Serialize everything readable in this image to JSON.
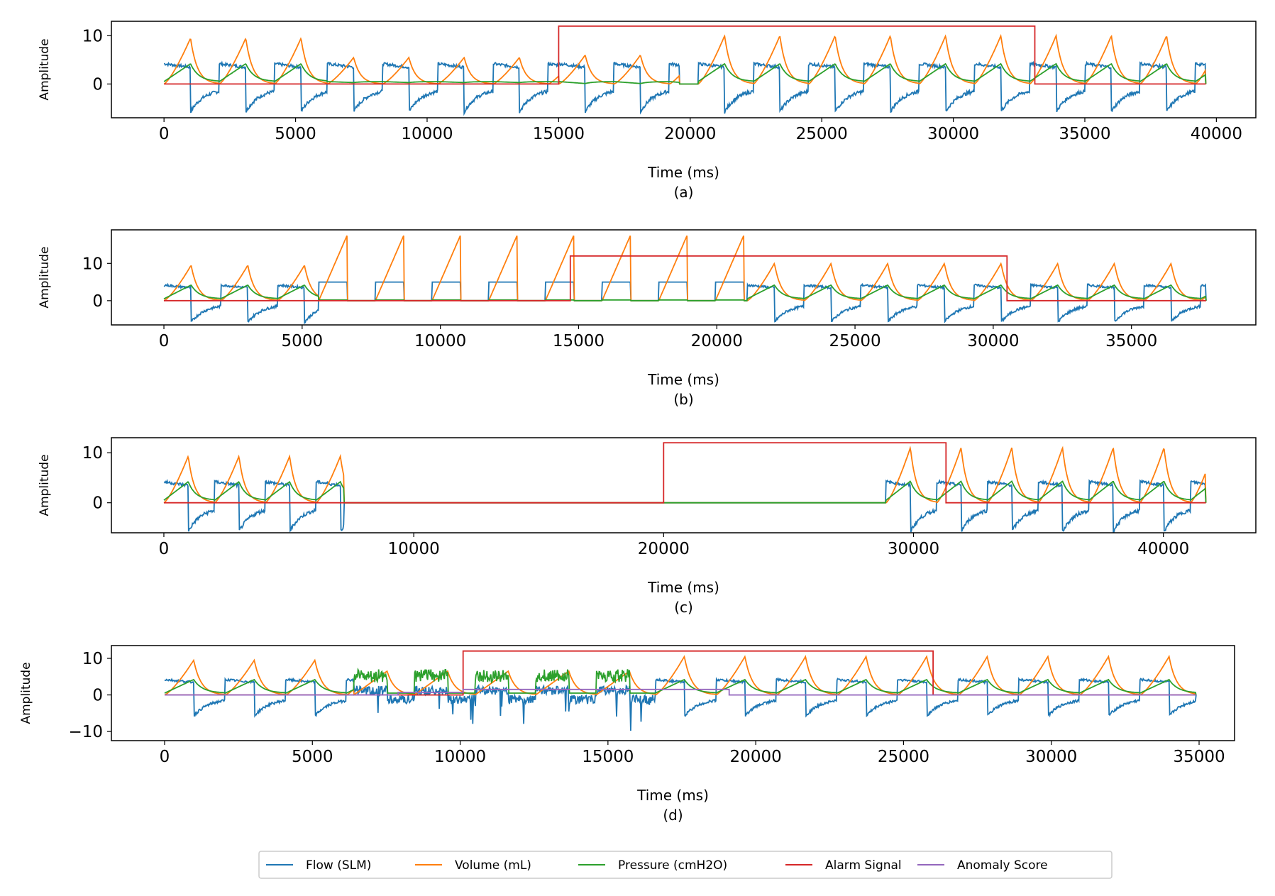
{
  "colors": {
    "flow": "#1f77b4",
    "volume": "#ff7f0e",
    "pressure": "#2ca02c",
    "alarm": "#d62728",
    "anomaly": "#9467bd"
  },
  "legend": {
    "placement": "bottom-center",
    "entries": [
      {
        "label": "Flow (SLM)",
        "color": "#1f77b4"
      },
      {
        "label": "Volume (mL)",
        "color": "#ff7f0e"
      },
      {
        "label": "Pressure (cmH2O)",
        "color": "#2ca02c"
      },
      {
        "label": "Alarm Signal",
        "color": "#d62728"
      },
      {
        "label": "Anomaly Score",
        "color": "#9467bd"
      }
    ]
  },
  "chart_data": [
    {
      "type": "line",
      "caption": "(a)",
      "xlabel": "Time (ms)",
      "ylabel": "Amplitude",
      "xlim": [
        -2000,
        41500
      ],
      "ylim": [
        -7,
        13
      ],
      "xticks": [
        0,
        5000,
        10000,
        15000,
        20000,
        25000,
        30000,
        35000,
        40000
      ],
      "yticks": [
        0,
        10
      ],
      "grid": false,
      "duration": 39600,
      "breath_period": 2100,
      "apnea": [
        [
          19600,
          20300
        ]
      ],
      "mode_segments": [
        {
          "start": 0,
          "end": 6200,
          "vol_peak": 9.5,
          "press_peak": 4.2
        },
        {
          "start": 6200,
          "end": 15000,
          "vol_peak": 5.5,
          "press_peak": 0.3
        },
        {
          "start": 15000,
          "end": 19600,
          "vol_peak": 6.0,
          "press_peak": 0.1
        },
        {
          "start": 20300,
          "end": 39600,
          "vol_peak": 10.0,
          "press_peak": 4.2
        }
      ],
      "series": [
        {
          "name": "Alarm Signal",
          "x": [
            0,
            15000,
            15000,
            33100,
            33100,
            39600
          ],
          "y": [
            0,
            0,
            12,
            12,
            0,
            0
          ]
        }
      ]
    },
    {
      "type": "line",
      "caption": "(b)",
      "xlabel": "Time (ms)",
      "ylabel": "Amplitude",
      "xlim": [
        -1900,
        39500
      ],
      "ylim": [
        -6.5,
        19
      ],
      "xticks": [
        0,
        5000,
        10000,
        15000,
        20000,
        25000,
        30000,
        35000
      ],
      "yticks": [
        0,
        10
      ],
      "grid": false,
      "duration": 37700,
      "breath_period": 2050,
      "apnea": [],
      "mode_segments": [
        {
          "start": 0,
          "end": 5600,
          "vol_peak": 9.5,
          "press_peak": 4.2
        },
        {
          "start": 5600,
          "end": 21100,
          "vol_peak": 17.5,
          "press_peak": 0.3,
          "square": true
        },
        {
          "start": 21100,
          "end": 37700,
          "vol_peak": 10.0,
          "press_peak": 4.2
        }
      ],
      "series": [
        {
          "name": "Alarm Signal",
          "x": [
            0,
            14700,
            14700,
            30500,
            30500,
            37700
          ],
          "y": [
            0,
            0,
            12,
            12,
            0,
            0
          ]
        }
      ]
    },
    {
      "type": "line",
      "caption": "(c)",
      "xlabel": "Time (ms)",
      "ylabel": "Amplitude",
      "xlim": [
        -2100,
        43700
      ],
      "ylim": [
        -6,
        13
      ],
      "xticks": [
        0,
        10000,
        20000,
        30000,
        40000
      ],
      "yticks": [
        0,
        10
      ],
      "grid": false,
      "duration": 41700,
      "breath_period": 2030,
      "apnea": [
        [
          7200,
          28900
        ]
      ],
      "mode_segments": [
        {
          "start": 0,
          "end": 7200,
          "vol_peak": 9.3,
          "press_peak": 4.2
        },
        {
          "start": 28900,
          "end": 41700,
          "vol_peak": 11.0,
          "press_peak": 4.3
        }
      ],
      "series": [
        {
          "name": "Alarm Signal",
          "x": [
            0,
            20000,
            20000,
            31300,
            31300,
            41700
          ],
          "y": [
            0,
            0,
            12,
            12,
            0,
            0
          ]
        }
      ]
    },
    {
      "type": "line",
      "caption": "(d)",
      "xlabel": "Time (ms)",
      "ylabel": "Amplitude",
      "xlim": [
        -1800,
        36200
      ],
      "ylim": [
        -12.5,
        13.5
      ],
      "xticks": [
        0,
        5000,
        10000,
        15000,
        20000,
        25000,
        30000,
        35000
      ],
      "yticks": [
        -10,
        0,
        10
      ],
      "grid": false,
      "duration": 34900,
      "breath_period": 2050,
      "apnea": [],
      "mode_segments": [
        {
          "start": 0,
          "end": 6400,
          "vol_peak": 9.5,
          "press_peak": 4.2
        },
        {
          "start": 6400,
          "end": 16600,
          "noisy": true,
          "vol_peak": 6.5,
          "press_peak": 7.0
        },
        {
          "start": 16600,
          "end": 34900,
          "vol_peak": 10.5,
          "press_peak": 4.2
        }
      ],
      "series": [
        {
          "name": "Alarm Signal",
          "x": [
            0,
            10100,
            10100,
            26000,
            26000,
            34900
          ],
          "y": [
            0,
            0,
            12,
            12,
            0,
            0
          ]
        },
        {
          "name": "Anomaly Score",
          "x": [
            0,
            7900,
            7900,
            10100,
            10100,
            19100,
            19100,
            34900
          ],
          "y": [
            0,
            0,
            0.7,
            0.7,
            1.5,
            1.5,
            0,
            0
          ]
        }
      ]
    }
  ]
}
